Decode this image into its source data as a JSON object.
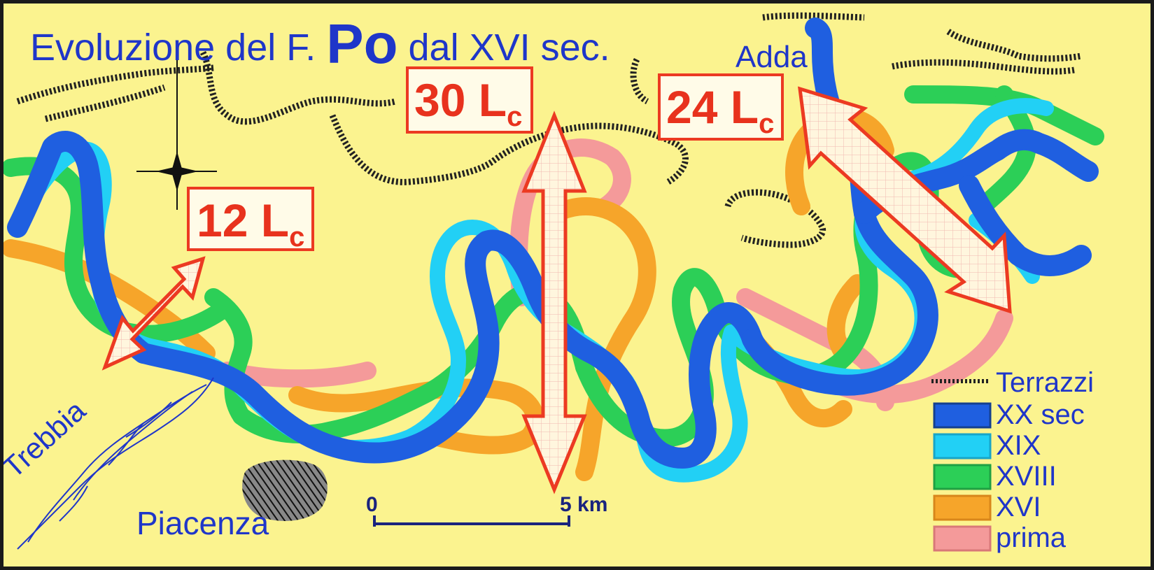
{
  "title": {
    "prefix": "Evoluzione del F.",
    "river": "Po",
    "suffix": "dal XVI sec."
  },
  "places": {
    "adda": "Adda",
    "trebbia": "Trebbia",
    "piacenza": "Piacenza"
  },
  "labels": [
    {
      "num": "12 L",
      "sub": "c"
    },
    {
      "num": "30 L",
      "sub": "c"
    },
    {
      "num": "24 L",
      "sub": "c"
    }
  ],
  "scale": {
    "start": "0",
    "end": "5 km"
  },
  "legend": [
    {
      "label": "Terrazzi",
      "color": "#000000",
      "icon": "hatched-terrace"
    },
    {
      "label": "XX sec",
      "color": "#1f5fe0",
      "icon": "swatch"
    },
    {
      "label": "XIX",
      "color": "#22d0f5",
      "icon": "swatch"
    },
    {
      "label": "XVIII",
      "color": "#2ccf57",
      "icon": "swatch"
    },
    {
      "label": "XVI",
      "color": "#f6a52a",
      "icon": "swatch"
    },
    {
      "label": "prima",
      "color": "#f49a9a",
      "icon": "swatch"
    }
  ],
  "colors": {
    "background": "#fbf38f",
    "text": "#1f36c9",
    "arrow": "#ec3a22",
    "prima": "#f49a9a",
    "xvi": "#f6a52a",
    "xviii": "#2ccf57",
    "xix": "#22d0f5",
    "xx": "#1f5fe0"
  }
}
